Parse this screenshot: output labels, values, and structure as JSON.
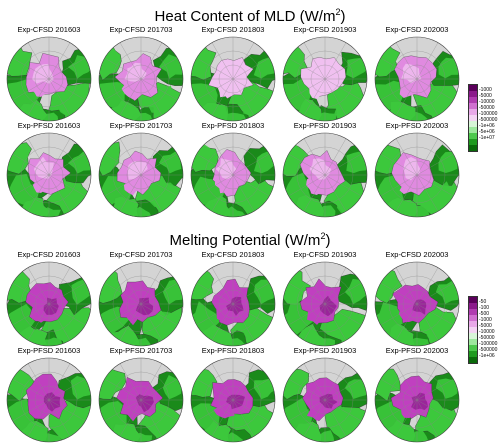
{
  "sections": [
    {
      "title_main": "Heat Content of MLD (W/m",
      "title_sup": "2",
      "title_end": ")",
      "rows": [
        [
          "Exp-CFSD 201603",
          "Exp-CFSD 201703",
          "Exp-CFSD 201803",
          "Exp-CFSD 201903",
          "Exp-CFSD 202003"
        ],
        [
          "Exp-PFSD 201603",
          "Exp-PFSD 201703",
          "Exp-PFSD 201803",
          "Exp-PFSD 201903",
          "Exp-PFSD 202003"
        ]
      ],
      "colorbar_ticks": [
        "-1000",
        "-5000",
        "-10000",
        "-50000",
        "-100000",
        "-500000",
        "-1e+06",
        "-5e+06",
        "-1e+07"
      ],
      "colorbar_colors": [
        "#5b005b",
        "#8b1a8b",
        "#b03cb0",
        "#d070d0",
        "#e8a8e8",
        "#f3d3f3",
        "#d8f5d8",
        "#9de89d",
        "#4cc84c",
        "#1f9a1f",
        "#0a6a0a"
      ]
    },
    {
      "title_main": "Melting Potential (W/m",
      "title_sup": "2",
      "title_end": ")",
      "rows": [
        [
          "Exp-CFSD 201603",
          "Exp-CFSD 201703",
          "Exp-CFSD 201803",
          "Exp-CFSD 201903",
          "Exp-CFSD 202003"
        ],
        [
          "Exp-PFSD 201603",
          "Exp-PFSD 201703",
          "Exp-PFSD 201803",
          "Exp-PFSD 201903",
          "Exp-PFSD 202003"
        ]
      ],
      "colorbar_ticks": [
        "-50",
        "-100",
        "-500",
        "-1000",
        "-5000",
        "-10000",
        "-50000",
        "-100000",
        "-500000",
        "-1e+06"
      ],
      "colorbar_colors": [
        "#5b005b",
        "#8b1a8b",
        "#b03cb0",
        "#d070d0",
        "#e8a8e8",
        "#f3d3f3",
        "#d8f5d8",
        "#9de89d",
        "#4cc84c",
        "#1f9a1f",
        "#0a6a0a"
      ]
    }
  ],
  "colors": {
    "ocean": "#d4d4d4",
    "land": "#3cc83c",
    "land_dark": "#1a8a1a",
    "ice_mld": "#e08ae0",
    "ice_mld_light": "#f0c0f0",
    "ice_melt": "#c040c0",
    "ice_melt_dark": "#8a1a8a",
    "grid": "#888888",
    "coast": "#333333"
  }
}
